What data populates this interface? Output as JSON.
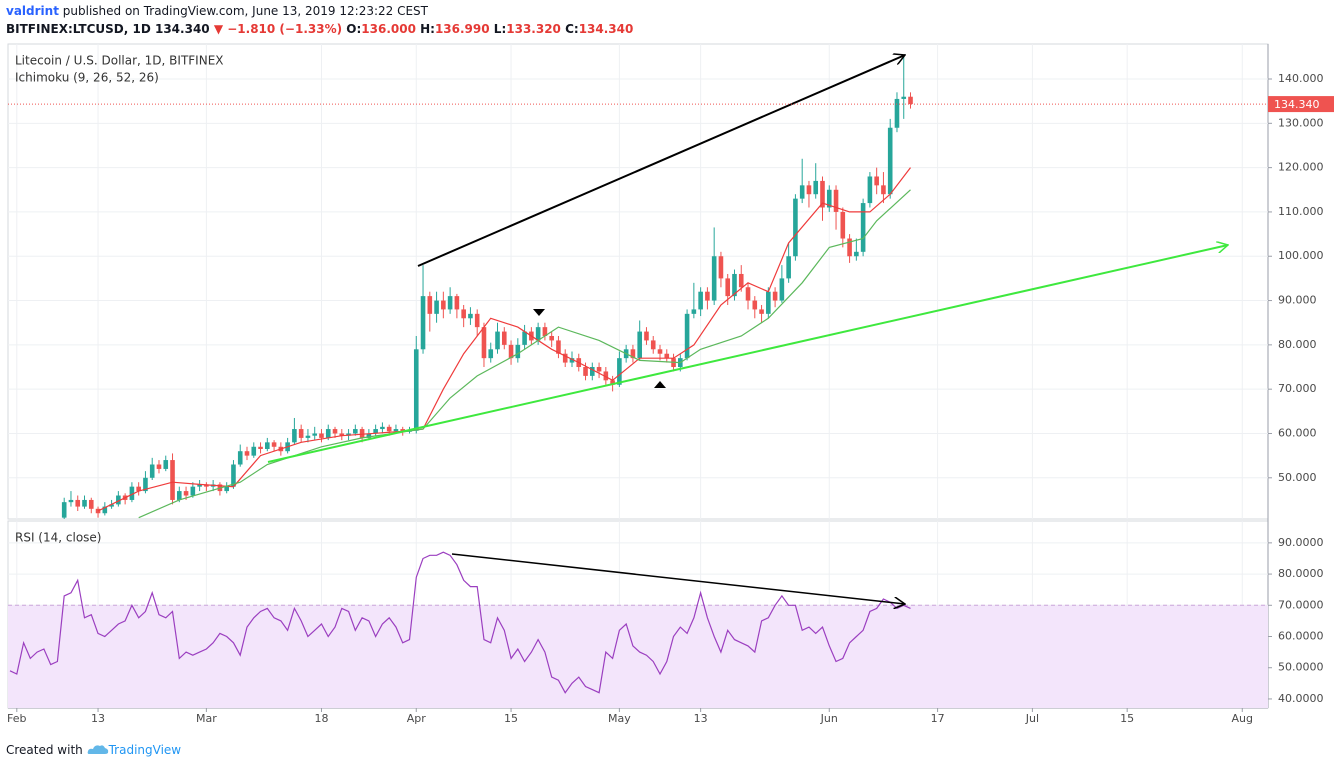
{
  "header": {
    "author": "valdrint",
    "published": "published on TradingView.com, June 13, 2019 12:23:22 CEST",
    "symbol": "BITFINEX:LTCUSD, 1D",
    "price": "134.340",
    "change": "▼ −1.810 (−1.33%)",
    "ohlc": [
      [
        "O:",
        "136.000"
      ],
      [
        "H:",
        "136.990"
      ],
      [
        "L:",
        "133.320"
      ],
      [
        "C:",
        "134.340"
      ]
    ]
  },
  "footer": {
    "created": "Created with",
    "brand": "TradingView"
  },
  "chart_data": [
    {
      "type": "candlestick",
      "title": "Litecoin / U.S. Dollar, 1D, BITFINEX",
      "subtitle": "Ichimoku (9, 26, 52, 26)",
      "xlim": [
        -1.3,
        184.8
      ],
      "ylim": [
        40.7,
        147.9
      ],
      "yticks": [
        {
          "value": 50,
          "label": "50.000"
        },
        {
          "value": 60,
          "label": "60.000"
        },
        {
          "value": 70,
          "label": "70.000"
        },
        {
          "value": 80,
          "label": "80.000"
        },
        {
          "value": 90,
          "label": "90.000"
        },
        {
          "value": 100,
          "label": "100.000"
        },
        {
          "value": 110,
          "label": "110.000"
        },
        {
          "value": 120,
          "label": "120.000"
        },
        {
          "value": 130,
          "label": "130.000"
        },
        {
          "value": 140,
          "label": "140.000"
        }
      ],
      "grid": true,
      "up_color": "#26a69a",
      "down_color": "#ef5350",
      "last_price_label": "134.340",
      "x": [
        7,
        8,
        9,
        10,
        11,
        12,
        13,
        14,
        15,
        16,
        17,
        18,
        19,
        20,
        21,
        22,
        23,
        24,
        25,
        26,
        27,
        28,
        29,
        30,
        31,
        32,
        33,
        34,
        35,
        36,
        37,
        38,
        39,
        40,
        41,
        42,
        43,
        44,
        45,
        46,
        47,
        48,
        49,
        50,
        51,
        52,
        53,
        54,
        55,
        56,
        57,
        58,
        59,
        60,
        61,
        62,
        63,
        64,
        65,
        66,
        67,
        68,
        69,
        70,
        71,
        72,
        73,
        74,
        75,
        76,
        77,
        78,
        79,
        80,
        81,
        82,
        83,
        84,
        85,
        86,
        87,
        88,
        89,
        90,
        91,
        92,
        93,
        94,
        95,
        96,
        97,
        98,
        99,
        100,
        101,
        102,
        103,
        104,
        105,
        106,
        107,
        108,
        109,
        110,
        111,
        112,
        113,
        114,
        115,
        116,
        117,
        118,
        119,
        120,
        121,
        122,
        123,
        124,
        125,
        126,
        127,
        128,
        129,
        130,
        131,
        132
      ],
      "open": [
        41,
        44.5,
        45,
        43.5,
        45,
        43,
        42,
        43.5,
        44,
        46,
        45,
        48,
        47,
        50,
        53,
        52,
        54,
        45,
        47,
        46,
        48,
        48.5,
        48,
        48.5,
        47,
        48,
        53,
        56,
        55,
        57,
        56.5,
        58,
        57,
        56,
        58,
        61,
        59,
        59.5,
        60,
        59,
        61,
        60,
        59.5,
        60,
        61,
        59,
        60,
        61,
        61.5,
        60.5,
        61,
        60.5,
        60.6,
        79,
        91,
        87,
        90,
        88,
        91,
        88,
        86,
        87,
        84,
        77,
        79,
        83,
        80,
        77,
        80,
        83,
        81,
        84,
        82,
        81,
        78,
        76,
        77,
        75,
        73,
        75,
        74,
        72,
        71,
        77,
        79,
        77,
        83,
        81,
        79,
        78,
        77,
        75,
        77,
        87,
        88,
        92,
        90,
        100,
        95,
        91,
        96,
        93,
        90,
        88,
        87,
        92,
        90,
        95,
        100,
        113,
        116,
        114,
        117,
        111,
        115,
        110,
        104,
        100,
        101,
        112,
        118,
        116,
        114,
        129,
        135.5,
        136
      ],
      "high": [
        45.5,
        47,
        46,
        46,
        45.5,
        43.5,
        44.5,
        45,
        47,
        46.5,
        49,
        49,
        51.5,
        54.5,
        54,
        55,
        55.5,
        48,
        48,
        49,
        49.5,
        49,
        49.5,
        49,
        49,
        54,
        57.5,
        57,
        58,
        58,
        59,
        58.5,
        58,
        59,
        63.5,
        62,
        61,
        61.5,
        61,
        62,
        61.5,
        61,
        61,
        62,
        61.5,
        61,
        62,
        62.5,
        62,
        62,
        61.5,
        61.5,
        82,
        98,
        92,
        92,
        92,
        93,
        91.5,
        89,
        88.5,
        88,
        85,
        80.5,
        85,
        84,
        81,
        81.5,
        84.5,
        84,
        85,
        85,
        83,
        82,
        79,
        78.5,
        78,
        76,
        76,
        76,
        75,
        73,
        78.5,
        80,
        80,
        85.5,
        84,
        82,
        80,
        79,
        78,
        78,
        88,
        94,
        93,
        93,
        106.5,
        101,
        96,
        97,
        98,
        94,
        91,
        89,
        93,
        93,
        98,
        103,
        114,
        122,
        117,
        121,
        118,
        116,
        116,
        111,
        105,
        104,
        113,
        119,
        120,
        119,
        131,
        137,
        145,
        136.99
      ],
      "low": [
        40.5,
        43.5,
        42.5,
        43,
        42,
        41,
        41.5,
        43,
        43.5,
        44,
        44.5,
        46,
        46.5,
        49.5,
        51,
        51.5,
        44,
        44.5,
        45,
        45.5,
        47,
        47,
        47,
        46,
        46.5,
        47.5,
        52.5,
        54,
        54.5,
        55.5,
        56,
        56,
        55,
        55.5,
        57.5,
        58,
        58,
        58.5,
        58,
        58.5,
        59,
        58.5,
        58.5,
        59.5,
        58,
        58.5,
        59.5,
        60,
        59.5,
        60,
        59.5,
        60,
        60,
        78,
        83,
        85,
        86,
        87,
        86,
        84,
        84.5,
        82,
        75,
        76,
        78,
        79,
        75.5,
        76,
        79,
        80,
        80,
        81,
        79.5,
        77,
        75,
        75,
        74,
        72,
        72,
        72.5,
        71,
        69.5,
        70.5,
        76,
        76,
        76.5,
        80,
        78,
        76.5,
        76,
        74,
        74,
        76.5,
        86,
        86.5,
        88,
        89,
        93,
        89,
        90,
        92,
        88,
        86,
        85,
        86,
        88.5,
        89.5,
        94,
        99,
        112,
        111,
        113,
        108,
        110,
        106,
        102,
        98.5,
        99,
        100,
        111,
        114,
        112,
        113,
        128,
        131,
        133.32
      ],
      "close": [
        44.5,
        45,
        43.5,
        45,
        43,
        42,
        43.5,
        44,
        46,
        45,
        48,
        47,
        50,
        53,
        52,
        54,
        45,
        47,
        46,
        48,
        48.5,
        48,
        48.5,
        47,
        48,
        53,
        56,
        55,
        57,
        56.5,
        58,
        57,
        56,
        58,
        61,
        59,
        59.5,
        60,
        59,
        61,
        60,
        59.5,
        60,
        61,
        59,
        60,
        61,
        61.5,
        60.5,
        61,
        60.5,
        60.6,
        79,
        91,
        87,
        90,
        88,
        91,
        88,
        86,
        87,
        84,
        77,
        79,
        83,
        80,
        77,
        80,
        83,
        81,
        84,
        82,
        81,
        78,
        76,
        77,
        75,
        73,
        75,
        74,
        72,
        71,
        77,
        79,
        77,
        83,
        81,
        79,
        78,
        77,
        75,
        77,
        87,
        88,
        92,
        90,
        100,
        95,
        91,
        96,
        93,
        90,
        88,
        87,
        92,
        90,
        95,
        100,
        113,
        116,
        114,
        117,
        111,
        115,
        110,
        104,
        100,
        101,
        112,
        118,
        116,
        114,
        129,
        135.5,
        136,
        134.34
      ],
      "series": [
        {
          "color": "#ef3b3b",
          "x": [
            12,
            18,
            23,
            27,
            32,
            36,
            42,
            48,
            57,
            60,
            63,
            66,
            70,
            74,
            79,
            83,
            88,
            92,
            97,
            100,
            104,
            108,
            111,
            114,
            119,
            123,
            126,
            129,
            132
          ],
          "values": [
            42.5,
            47,
            49,
            48.5,
            48,
            55,
            58,
            59.5,
            60.5,
            61,
            70,
            78,
            86,
            84,
            79,
            76,
            72,
            77,
            77,
            80,
            89,
            94,
            92,
            103,
            112,
            110,
            110,
            114,
            120
          ]
        },
        {
          "color": "#5cb85c",
          "x": [
            18,
            24,
            33,
            37,
            45,
            51,
            60,
            64,
            68,
            74,
            80,
            86,
            92,
            98,
            101,
            107,
            111,
            116,
            120,
            125,
            127,
            132
          ],
          "values": [
            41,
            45,
            49,
            53,
            57,
            59,
            61,
            68,
            73,
            78,
            84,
            81,
            76.5,
            76,
            79,
            82,
            86,
            94,
            102,
            104,
            108,
            115
          ]
        }
      ]
    },
    {
      "type": "line",
      "title": "RSI (14, close)",
      "xlim": [
        -1.3,
        184.8
      ],
      "ylim": [
        37.1,
        97
      ],
      "yticks": [
        {
          "value": 40,
          "label": "40.0000"
        },
        {
          "value": 50,
          "label": "50.0000"
        },
        {
          "value": 60,
          "label": "60.0000"
        },
        {
          "value": 70,
          "label": "70.0000"
        },
        {
          "value": 80,
          "label": "80.0000"
        },
        {
          "value": 90,
          "label": "90.0000"
        }
      ],
      "xticks": [
        {
          "value": 0,
          "label": "Feb"
        },
        {
          "value": 12,
          "label": "13"
        },
        {
          "value": 28,
          "label": "Mar"
        },
        {
          "value": 45,
          "label": "18"
        },
        {
          "value": 59,
          "label": "Apr"
        },
        {
          "value": 73,
          "label": "15"
        },
        {
          "value": 89,
          "label": "May"
        },
        {
          "value": 101,
          "label": "13"
        },
        {
          "value": 120,
          "label": "Jun"
        },
        {
          "value": 136,
          "label": "17"
        },
        {
          "value": 150,
          "label": "Jul"
        },
        {
          "value": 164,
          "label": "15"
        },
        {
          "value": 181,
          "label": "Aug"
        }
      ],
      "grid": true,
      "band": [
        30,
        70
      ],
      "band_color": "#f3e5fb",
      "series": [
        {
          "color": "#9b3fc0",
          "x": [
            -1,
            0,
            1,
            2,
            3,
            4,
            5,
            6,
            7,
            8,
            9,
            10,
            11,
            12,
            13,
            14,
            15,
            16,
            17,
            18,
            19,
            20,
            21,
            22,
            23,
            24,
            25,
            26,
            27,
            28,
            29,
            30,
            31,
            32,
            33,
            34,
            35,
            36,
            37,
            38,
            39,
            40,
            41,
            42,
            43,
            44,
            45,
            46,
            47,
            48,
            49,
            50,
            51,
            52,
            53,
            54,
            55,
            56,
            57,
            58,
            59,
            60,
            61,
            62,
            63,
            64,
            65,
            66,
            67,
            68,
            69,
            70,
            71,
            72,
            73,
            74,
            75,
            76,
            77,
            78,
            79,
            80,
            81,
            82,
            83,
            84,
            85,
            86,
            87,
            88,
            89,
            90,
            91,
            92,
            93,
            94,
            95,
            96,
            97,
            98,
            99,
            100,
            101,
            102,
            103,
            104,
            105,
            106,
            107,
            108,
            109,
            110,
            111,
            112,
            113,
            114,
            115,
            116,
            117,
            118,
            119,
            120,
            121,
            122,
            123,
            124,
            125,
            126,
            127,
            128,
            129,
            130,
            131,
            132
          ],
          "values": [
            49,
            48,
            58,
            53,
            55,
            56,
            51,
            52,
            73,
            74,
            78,
            66,
            67,
            61,
            60,
            62,
            64,
            65,
            70,
            66,
            68,
            74,
            67,
            66,
            68,
            53,
            55,
            54,
            55,
            56,
            58,
            61,
            60,
            58,
            54,
            63,
            66,
            68,
            69,
            66,
            65,
            62,
            69,
            65,
            60,
            62,
            64,
            60,
            63,
            69,
            68,
            62,
            66,
            65,
            60,
            64,
            66,
            63,
            58,
            59,
            79,
            85,
            86,
            86,
            87,
            86,
            83,
            78,
            76,
            76,
            59,
            58,
            66,
            62,
            53,
            56,
            52,
            55,
            59,
            55,
            47,
            46,
            42,
            45,
            47,
            44,
            43,
            42,
            55,
            53,
            62,
            64,
            57,
            55,
            54,
            52,
            48,
            52,
            60,
            63,
            61,
            66,
            74,
            66,
            60,
            55,
            62,
            59,
            58,
            57,
            55,
            65,
            66,
            70,
            73,
            70,
            70,
            62,
            63,
            61,
            63,
            57,
            52,
            53,
            58,
            60,
            62,
            68,
            69,
            72,
            71,
            69,
            70,
            69
          ]
        }
      ]
    }
  ]
}
